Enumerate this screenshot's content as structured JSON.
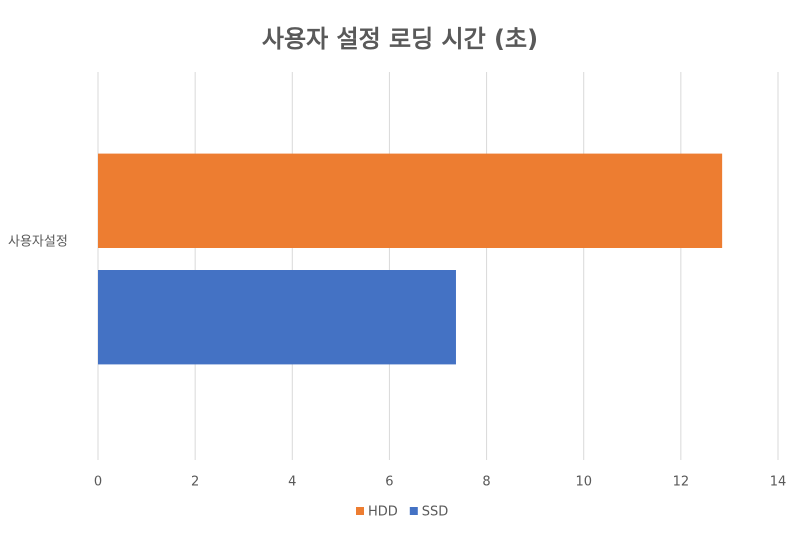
{
  "chart_data": {
    "type": "hbar",
    "title": "사용자 설정 로딩 시간 (초)",
    "categories": [
      "사용자설정"
    ],
    "series": [
      {
        "name": "HDD",
        "color": "#ed7d31",
        "values": [
          12.85
        ]
      },
      {
        "name": "SSD",
        "color": "#4472c4",
        "values": [
          7.37
        ]
      }
    ],
    "xlim": [
      0,
      14
    ],
    "xticks": [
      0,
      2,
      4,
      6,
      8,
      10,
      12,
      14
    ],
    "grid": true,
    "legend": "bottom"
  }
}
